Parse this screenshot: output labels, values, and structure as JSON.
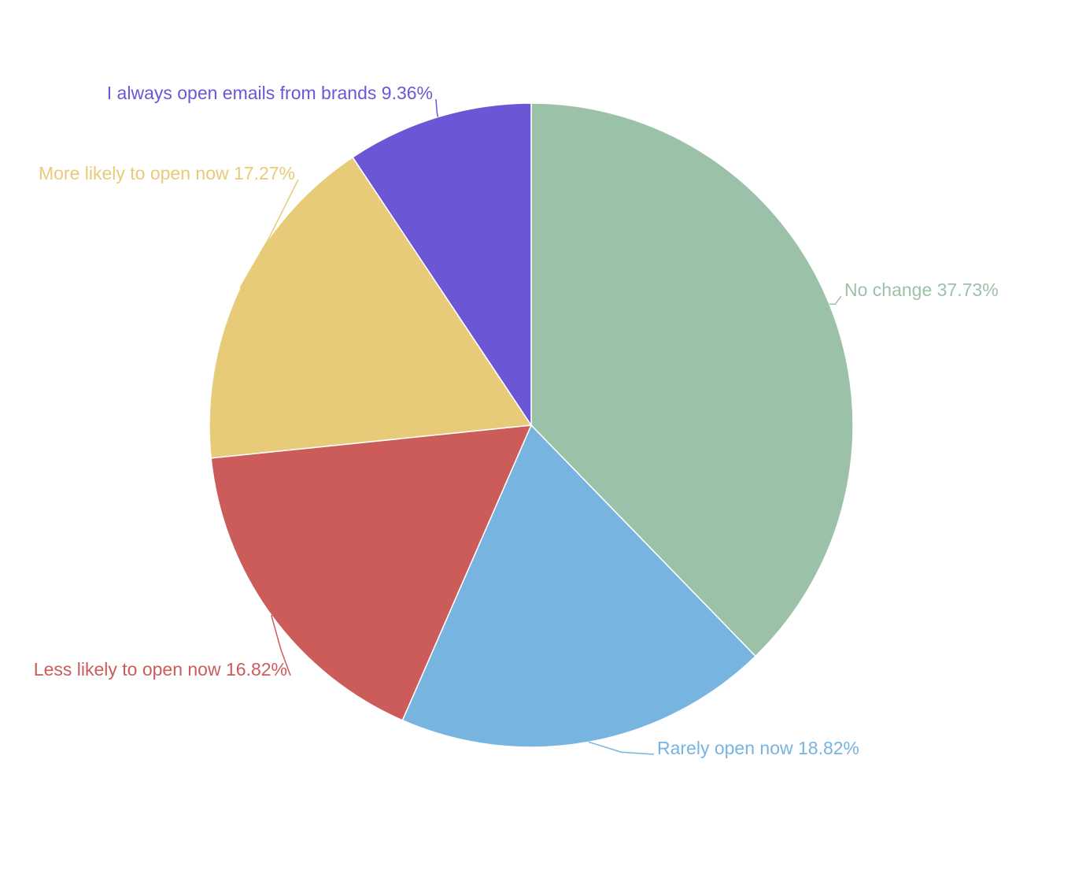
{
  "chart_data": {
    "type": "pie",
    "categories": [
      "No change",
      "Rarely open now",
      "Less likely to open now",
      "More likely to open now",
      "I always open emails from brands"
    ],
    "values": [
      37.73,
      18.82,
      16.82,
      17.27,
      9.36
    ],
    "value_labels": [
      "37.73%",
      "18.82%",
      "16.82%",
      "17.27%",
      "9.36%"
    ],
    "colors": [
      "#9bc2a8",
      "#77b4e0",
      "#cc5c5a",
      "#e8cb79",
      "#6b57d6"
    ]
  }
}
